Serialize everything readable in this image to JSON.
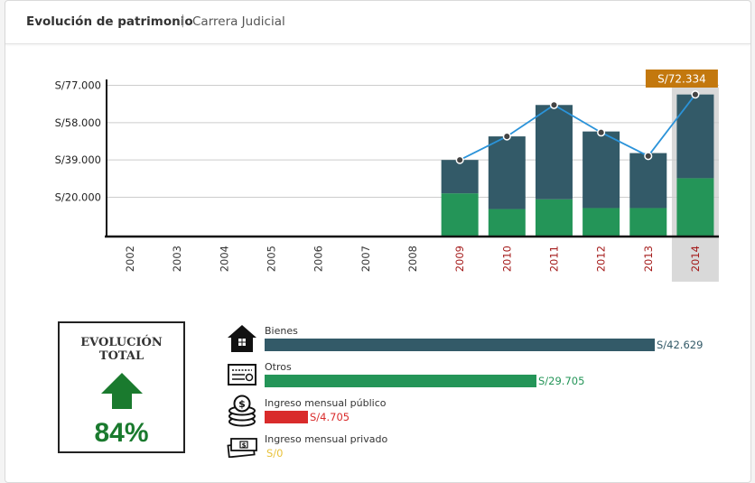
{
  "header": {
    "title": "Evolución de patrimonio",
    "separator": "|",
    "subtitle": "Carrera Judicial"
  },
  "colors": {
    "bienes": "#335a68",
    "otros": "#249558",
    "line": "#2b93d9",
    "tooltip": "#c3780e",
    "highlight": "#d9d9d9",
    "year_active": "#a41a1a",
    "year_inactive": "#333333",
    "ingreso_publico": "#d92b2b",
    "ingreso_privado": "#e8c23a",
    "evo_green": "#1a7a2e"
  },
  "chart_data": {
    "type": "bar",
    "stacked": true,
    "categories": [
      "2002",
      "2003",
      "2004",
      "2005",
      "2006",
      "2007",
      "2008",
      "2009",
      "2010",
      "2011",
      "2012",
      "2013",
      "2014"
    ],
    "series": [
      {
        "key": "otros",
        "values": [
          0,
          0,
          0,
          0,
          0,
          0,
          0,
          22000,
          14000,
          19000,
          14500,
          14500,
          29705
        ]
      },
      {
        "key": "bienes",
        "values": [
          0,
          0,
          0,
          0,
          0,
          0,
          0,
          17000,
          37000,
          48000,
          39000,
          28000,
          42629
        ]
      }
    ],
    "line": {
      "values": [
        null,
        null,
        null,
        null,
        null,
        null,
        null,
        39000,
        51000,
        67000,
        53000,
        41000,
        72334
      ]
    },
    "y_ticks": [
      "S/20.000",
      "S/39.000",
      "S/58.000",
      "S/77.000"
    ],
    "y_tick_values": [
      20000,
      39000,
      58000,
      77000
    ],
    "ylim": [
      0,
      80000
    ],
    "highlight_category": "2014",
    "tooltip_text": "S/72.334",
    "grid": true
  },
  "evolution": {
    "title_line1": "EVOLUCIÓN",
    "title_line2": "TOTAL",
    "value": "84%",
    "direction": "up"
  },
  "breakdown": [
    {
      "label": "Bienes",
      "value_text": "S/42.629",
      "amount": 42629,
      "icon": "house-icon",
      "color_key": "bienes"
    },
    {
      "label": "Otros",
      "value_text": "S/29.705",
      "amount": 29705,
      "icon": "document-icon",
      "color_key": "otros"
    },
    {
      "label": "Ingreso mensual público",
      "value_text": "S/4.705",
      "amount": 4705,
      "icon": "coins-icon",
      "color_key": "ingreso_publico"
    },
    {
      "label": "Ingreso mensual privado",
      "value_text": "S/0",
      "amount": 0,
      "icon": "banknotes-icon",
      "color_key": "ingreso_privado"
    }
  ]
}
